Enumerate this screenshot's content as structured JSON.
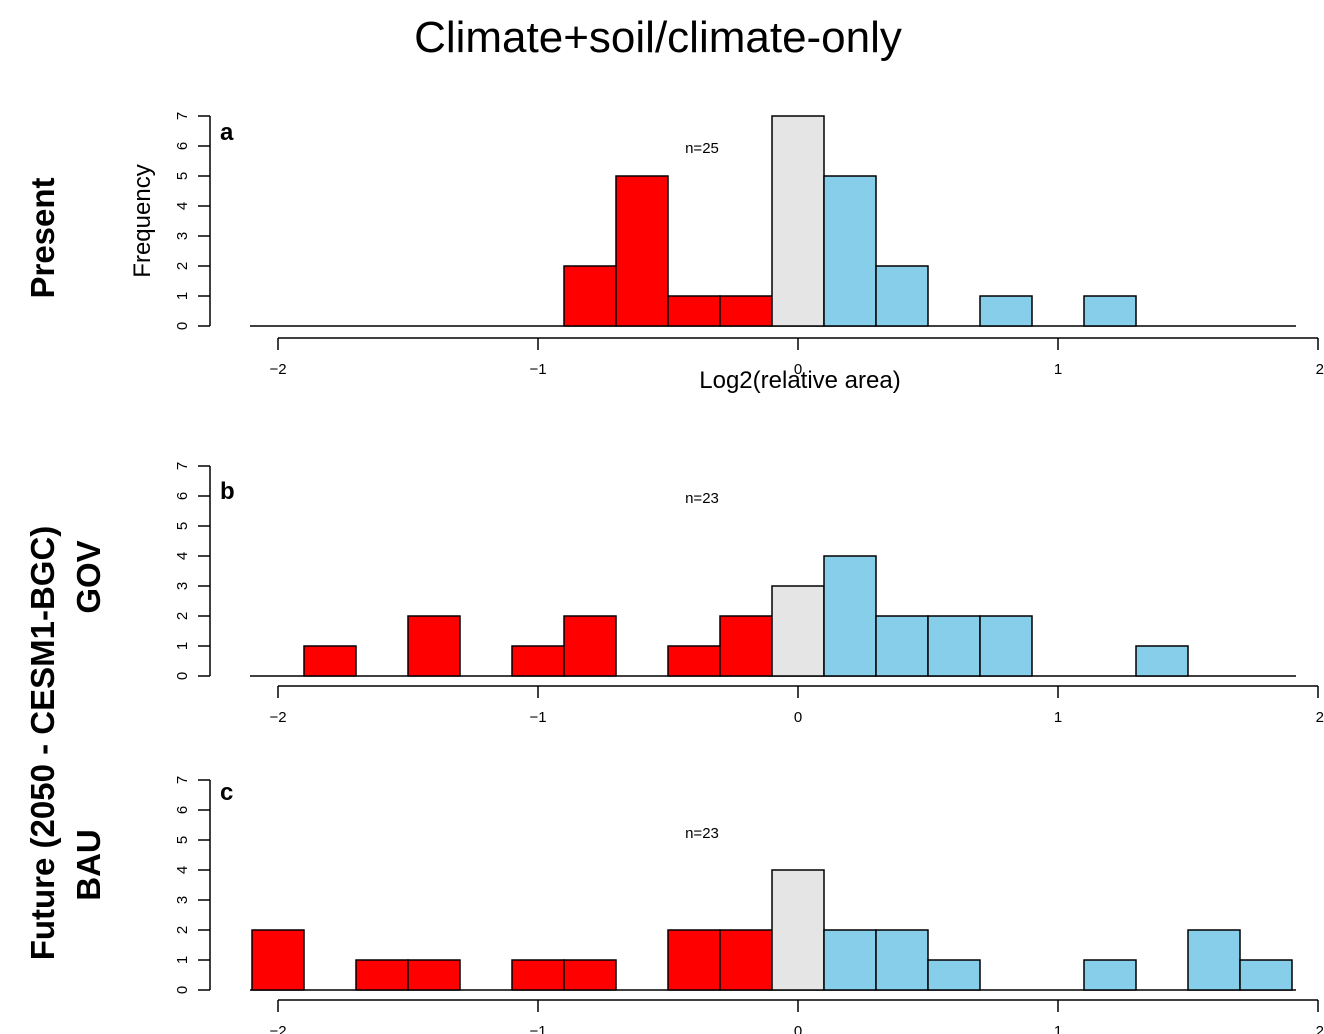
{
  "figure": {
    "title": "Climate+soil/climate-only",
    "row_labels": {
      "present": "Present",
      "future": "Future (2050 - CESM1-BGC)",
      "gov": "GOV",
      "bau": "BAU"
    }
  },
  "colors": {
    "negative": "#ff0000",
    "neutral": "#e5e5e5",
    "positive": "#87ceeb",
    "edge": "#000000"
  },
  "chart_data": [
    {
      "type": "bar",
      "panel": "a",
      "annotation": "n=25",
      "xlabel": "Log2(relative area)",
      "ylabel": "Frequency",
      "xlim": [
        -2,
        2
      ],
      "ylim": [
        0,
        7
      ],
      "xticks": [
        -2,
        -1,
        0,
        1,
        2
      ],
      "yticks": [
        0,
        1,
        2,
        3,
        4,
        5,
        6,
        7
      ],
      "bars": [
        {
          "x0": -0.9,
          "x1": -0.7,
          "count": 2,
          "class": "negative"
        },
        {
          "x0": -0.7,
          "x1": -0.5,
          "count": 5,
          "class": "negative"
        },
        {
          "x0": -0.5,
          "x1": -0.3,
          "count": 1,
          "class": "negative"
        },
        {
          "x0": -0.3,
          "x1": -0.1,
          "count": 1,
          "class": "negative"
        },
        {
          "x0": -0.1,
          "x1": 0.1,
          "count": 7,
          "class": "neutral"
        },
        {
          "x0": 0.1,
          "x1": 0.3,
          "count": 5,
          "class": "positive"
        },
        {
          "x0": 0.3,
          "x1": 0.5,
          "count": 2,
          "class": "positive"
        },
        {
          "x0": 0.7,
          "x1": 0.9,
          "count": 1,
          "class": "positive"
        },
        {
          "x0": 1.1,
          "x1": 1.3,
          "count": 1,
          "class": "positive"
        }
      ]
    },
    {
      "type": "bar",
      "panel": "b",
      "annotation": "n=23",
      "xlabel": "",
      "ylabel": "",
      "xlim": [
        -2,
        2
      ],
      "ylim": [
        0,
        7
      ],
      "xticks": [
        -2,
        -1,
        0,
        1,
        2
      ],
      "yticks": [
        0,
        1,
        2,
        3,
        4,
        5,
        6,
        7
      ],
      "bars": [
        {
          "x0": -1.9,
          "x1": -1.7,
          "count": 1,
          "class": "negative"
        },
        {
          "x0": -1.5,
          "x1": -1.3,
          "count": 2,
          "class": "negative"
        },
        {
          "x0": -1.1,
          "x1": -0.9,
          "count": 1,
          "class": "negative"
        },
        {
          "x0": -0.9,
          "x1": -0.7,
          "count": 2,
          "class": "negative"
        },
        {
          "x0": -0.5,
          "x1": -0.3,
          "count": 1,
          "class": "negative"
        },
        {
          "x0": -0.3,
          "x1": -0.1,
          "count": 2,
          "class": "negative"
        },
        {
          "x0": -0.1,
          "x1": 0.1,
          "count": 3,
          "class": "neutral"
        },
        {
          "x0": 0.1,
          "x1": 0.3,
          "count": 4,
          "class": "positive"
        },
        {
          "x0": 0.3,
          "x1": 0.5,
          "count": 2,
          "class": "positive"
        },
        {
          "x0": 0.5,
          "x1": 0.7,
          "count": 2,
          "class": "positive"
        },
        {
          "x0": 0.7,
          "x1": 0.9,
          "count": 2,
          "class": "positive"
        },
        {
          "x0": 1.3,
          "x1": 1.5,
          "count": 1,
          "class": "positive"
        }
      ]
    },
    {
      "type": "bar",
      "panel": "c",
      "annotation": "n=23",
      "xlabel": "",
      "ylabel": "",
      "xlim": [
        -2,
        2
      ],
      "ylim": [
        0,
        7
      ],
      "xticks": [
        -2,
        -1,
        0,
        1,
        2
      ],
      "yticks": [
        0,
        1,
        2,
        3,
        4,
        5,
        6,
        7
      ],
      "bars": [
        {
          "x0": -2.1,
          "x1": -1.9,
          "count": 2,
          "class": "negative"
        },
        {
          "x0": -1.7,
          "x1": -1.5,
          "count": 1,
          "class": "negative"
        },
        {
          "x0": -1.5,
          "x1": -1.3,
          "count": 1,
          "class": "negative"
        },
        {
          "x0": -1.1,
          "x1": -0.9,
          "count": 1,
          "class": "negative"
        },
        {
          "x0": -0.9,
          "x1": -0.7,
          "count": 1,
          "class": "negative"
        },
        {
          "x0": -0.5,
          "x1": -0.3,
          "count": 2,
          "class": "negative"
        },
        {
          "x0": -0.3,
          "x1": -0.1,
          "count": 2,
          "class": "negative"
        },
        {
          "x0": -0.1,
          "x1": 0.1,
          "count": 4,
          "class": "neutral"
        },
        {
          "x0": 0.1,
          "x1": 0.3,
          "count": 2,
          "class": "positive"
        },
        {
          "x0": 0.3,
          "x1": 0.5,
          "count": 2,
          "class": "positive"
        },
        {
          "x0": 0.5,
          "x1": 0.7,
          "count": 1,
          "class": "positive"
        },
        {
          "x0": 1.1,
          "x1": 1.3,
          "count": 1,
          "class": "positive"
        },
        {
          "x0": 1.5,
          "x1": 1.7,
          "count": 2,
          "class": "positive"
        },
        {
          "x0": 1.7,
          "x1": 1.9,
          "count": 1,
          "class": "positive"
        }
      ]
    }
  ]
}
